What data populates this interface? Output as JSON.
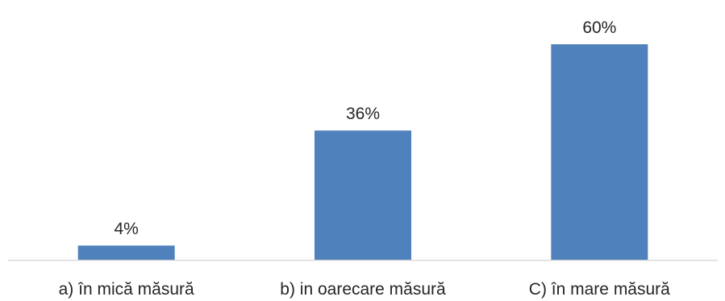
{
  "chart_data": {
    "type": "bar",
    "categories": [
      "a) în mică măsură",
      "b) in oarecare măsură",
      "C) în mare măsură"
    ],
    "values": [
      4,
      36,
      60
    ],
    "value_labels": [
      "4%",
      "36%",
      "60%"
    ],
    "ylim": [
      0,
      60
    ],
    "grid": false,
    "legend": "none",
    "colors": {
      "bar": "#4f81bd",
      "axis": "#d9d9d9",
      "text": "#262626"
    }
  }
}
